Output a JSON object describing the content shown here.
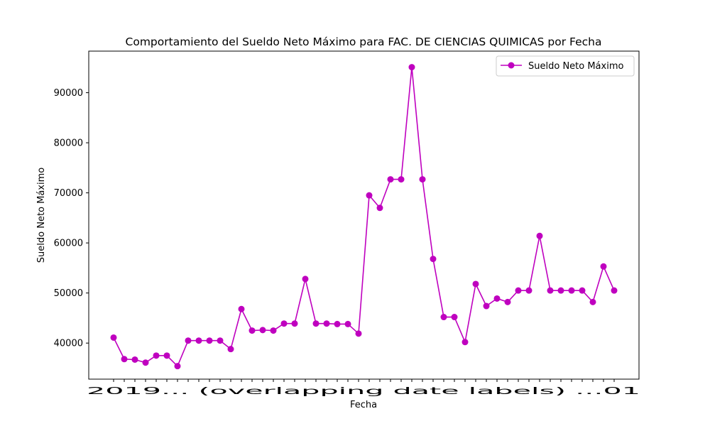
{
  "chart_data": {
    "type": "line",
    "title": "Comportamiento del Sueldo Neto Máximo para FAC. DE CIENCIAS QUIMICAS por Fecha",
    "xlabel": "Fecha",
    "ylabel": "Sueldo Neto Máximo",
    "ylim": [
      32800,
      98300
    ],
    "y_ticks": [
      40000,
      50000,
      60000,
      70000,
      80000,
      90000
    ],
    "y_tick_labels": [
      "40000",
      "50000",
      "60000",
      "70000",
      "80000",
      "90000"
    ],
    "x_tick_labels_visible": "2019... (overlapping date labels) ...01",
    "grid": false,
    "legend_position": "top-right",
    "series": [
      {
        "name": "Sueldo Neto Máximo",
        "color": "#bf00bf",
        "marker": "circle",
        "values": [
          41100,
          36800,
          36700,
          36100,
          37500,
          37500,
          35400,
          40500,
          40500,
          40500,
          40500,
          38800,
          46800,
          42500,
          42600,
          42500,
          43900,
          43900,
          52800,
          43900,
          43900,
          43800,
          43800,
          41900,
          69500,
          67000,
          72700,
          72700,
          95100,
          72700,
          56800,
          45200,
          45200,
          40200,
          51800,
          47400,
          48900,
          48200,
          50500,
          50500,
          61400,
          50500,
          50500,
          50500,
          50500,
          48200,
          55300,
          50500
        ]
      }
    ]
  }
}
